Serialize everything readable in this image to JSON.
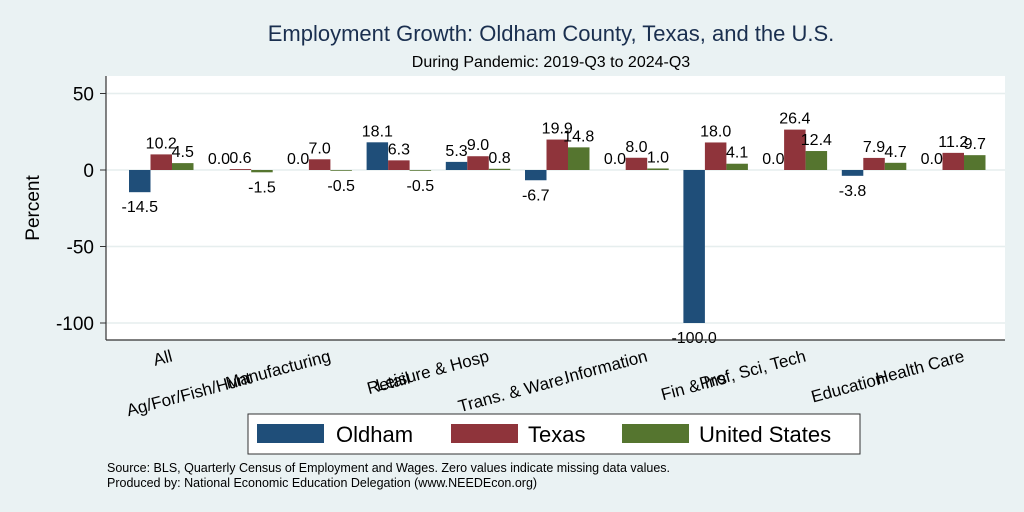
{
  "chart_data": {
    "type": "bar",
    "title": "Employment Growth: Oldham County, Texas, and the U.S.",
    "subtitle": "During Pandemic: 2019-Q3 to 2024-Q3",
    "xlabel": "",
    "ylabel": "Percent",
    "ylim": [
      -112,
      60
    ],
    "yticks": [
      50,
      0,
      -50,
      -100
    ],
    "ytick_labels": [
      "50",
      "0",
      "-50",
      "-100"
    ],
    "grid": true,
    "legend_position": "bottom",
    "categories": [
      "All",
      "Ag/For/Fish/Hunt",
      "Manufacturing",
      "Retail",
      "Leisure & Hosp",
      "Trans. & Ware.",
      "Information",
      "Fin & Ins",
      "Prof, Sci, Tech",
      "Education",
      "Health Care"
    ],
    "series": [
      {
        "name": "Oldham",
        "color": "#1f4e79",
        "values": [
          -14.5,
          0.0,
          0.0,
          18.1,
          5.3,
          -6.7,
          0.0,
          -100.0,
          0.0,
          -3.8,
          0.0
        ],
        "labels": [
          "-14.5",
          "0.0",
          "0.0",
          "18.1",
          "5.3",
          "-6.7",
          "0.0",
          "-100.0",
          "0.0",
          "-3.8",
          "0.0"
        ]
      },
      {
        "name": "Texas",
        "color": "#8f343b",
        "values": [
          10.2,
          0.6,
          7.0,
          6.3,
          9.0,
          19.9,
          8.0,
          18.0,
          26.4,
          7.9,
          11.2
        ],
        "labels": [
          "10.2",
          "0.6",
          "7.0",
          "6.3",
          "9.0",
          "19.9",
          "8.0",
          "18.0",
          "26.4",
          "7.9",
          "11.2"
        ]
      },
      {
        "name": "United States",
        "color": "#55752f",
        "values": [
          4.5,
          -1.5,
          -0.5,
          -0.5,
          0.8,
          14.8,
          1.0,
          4.1,
          12.4,
          4.7,
          9.7
        ],
        "labels": [
          "4.5",
          "-1.5",
          "-0.5",
          "-0.5",
          "0.8",
          "14.8",
          "1.0",
          "4.1",
          "12.4",
          "4.7",
          "9.7"
        ]
      }
    ],
    "notes": [
      "Source: BLS, Quarterly Census of Employment and Wages. Zero values indicate missing data values.",
      "Produced by: National Economic Education Delegation (www.NEEDEcon.org)"
    ]
  }
}
